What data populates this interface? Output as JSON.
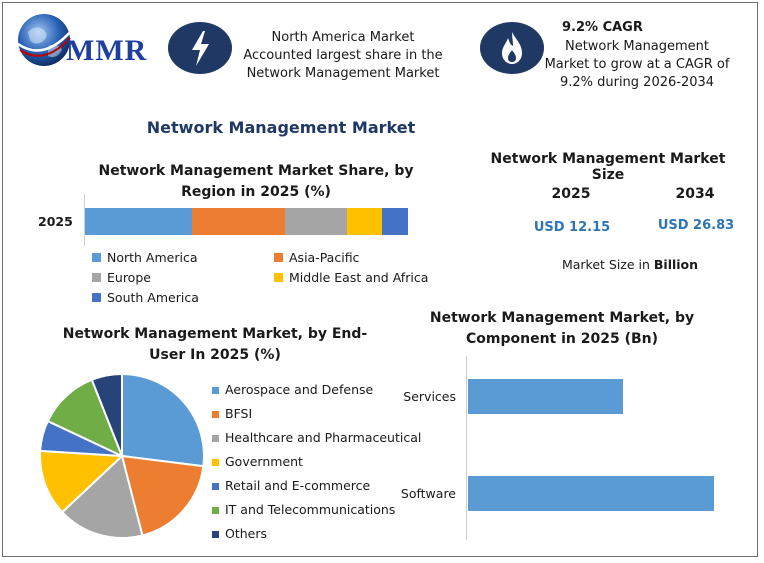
{
  "logo": {
    "text": "MMR"
  },
  "header": {
    "box1": "North America Market Accounted largest share in the Network Management Market",
    "box2_title": "9.2% CAGR",
    "box2_text": "Network Management Market to grow at a CAGR of 9.2% during 2026-2034"
  },
  "main_title": "Network Management Market",
  "colors": {
    "north_america": "#5b9bd5",
    "asia_pacific": "#ed7d31",
    "europe": "#a5a5a5",
    "middle_east": "#ffc000",
    "south_america": "#4472c4",
    "it_telecom": "#70ad47",
    "others": "#264478",
    "icon_bg": "#1f3864"
  },
  "icons": [
    "globe-logo-icon",
    "lightning-bolt-icon",
    "flame-icon"
  ],
  "market_size": {
    "title": "Network Management Market Size",
    "year1": "2025",
    "year2": "2034",
    "value1": "USD 12.15",
    "value2": "USD 26.83",
    "note_prefix": "Market Size in ",
    "note_bold": "Billion"
  },
  "chart_data": [
    {
      "type": "bar",
      "orientation": "horizontal-stacked",
      "title_line1": "Network Management Market Share, by",
      "title_line2": "Region in 2025 (%)",
      "categories": [
        "2025"
      ],
      "series": [
        {
          "name": "North America",
          "values": [
            33
          ]
        },
        {
          "name": "Asia-Pacific",
          "values": [
            29
          ]
        },
        {
          "name": "Europe",
          "values": [
            19
          ]
        },
        {
          "name": "Middle East and Africa",
          "values": [
            11
          ]
        },
        {
          "name": "South America",
          "values": [
            8
          ]
        }
      ],
      "legend": "bottom"
    },
    {
      "type": "pie",
      "title_line1": "Network Management Market, by End-",
      "title_line2": "User In 2025 (%)",
      "slices": [
        {
          "name": "Aerospace and Defense",
          "value": 27
        },
        {
          "name": "BFSI",
          "value": 19
        },
        {
          "name": "Healthcare and Pharmaceutical",
          "value": 17
        },
        {
          "name": "Government",
          "value": 13
        },
        {
          "name": "Retail and E-commerce",
          "value": 6
        },
        {
          "name": "IT and Telecommunications",
          "value": 12
        },
        {
          "name": "Others",
          "value": 6
        }
      ],
      "legend": "right"
    },
    {
      "type": "bar",
      "orientation": "horizontal",
      "title_line1": "Network Management Market, by",
      "title_line2": "Component in 2025 (Bn)",
      "categories": [
        "Services",
        "Software"
      ],
      "values": [
        4.7,
        7.45
      ],
      "xlim": [
        0,
        8
      ]
    }
  ]
}
